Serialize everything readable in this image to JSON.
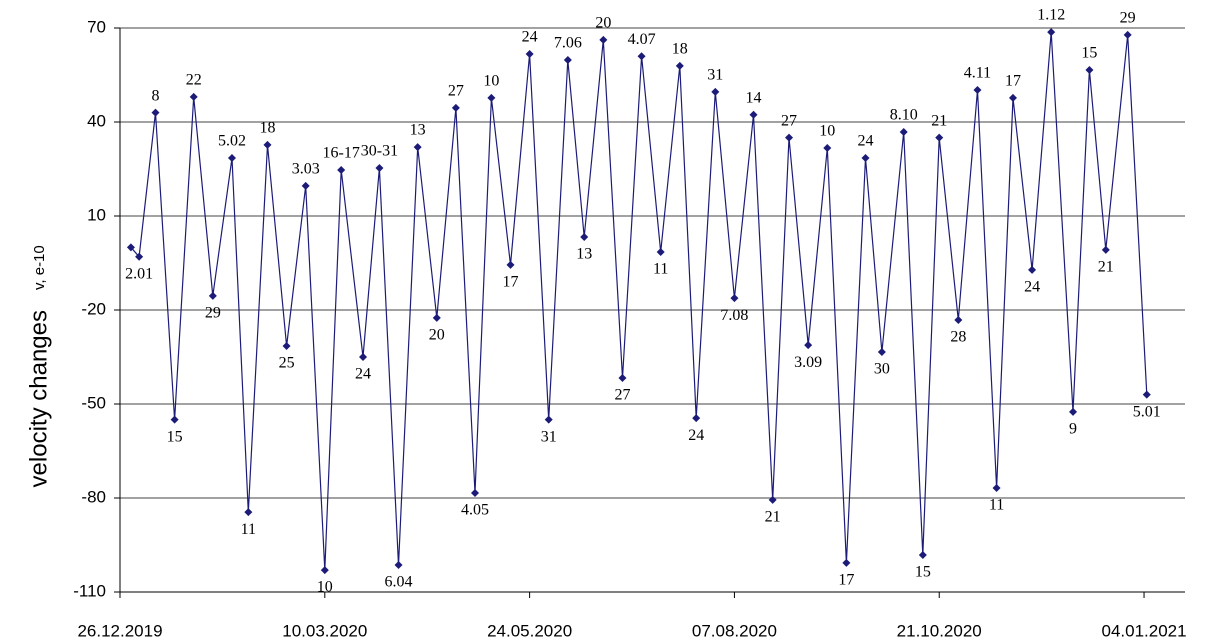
{
  "chart_data": {
    "type": "line",
    "y_label": "velocity changes",
    "y_unit": "v, e-10",
    "x": [
      "30.12.2019",
      "02.01.2020",
      "08.01.2020",
      "15.01.2020",
      "22.01.2020",
      "29.01.2020",
      "05.02.2020",
      "11.02.2020",
      "18.02.2020",
      "25.02.2020",
      "03.03.2020",
      "10.03.2020",
      "16.03.2020",
      "24.03.2020",
      "30.03.2020",
      "06.04.2020",
      "13.04.2020",
      "20.04.2020",
      "27.04.2020",
      "04.05.2020",
      "10.05.2020",
      "17.05.2020",
      "24.05.2020",
      "31.05.2020",
      "07.06.2020",
      "13.06.2020",
      "20.06.2020",
      "27.06.2020",
      "04.07.2020",
      "11.07.2020",
      "18.07.2020",
      "24.07.2020",
      "31.07.2020",
      "07.08.2020",
      "14.08.2020",
      "21.08.2020",
      "27.08.2020",
      "03.09.2020",
      "10.09.2020",
      "17.09.2020",
      "24.09.2020",
      "30.09.2020",
      "08.10.2020",
      "15.10.2020",
      "21.10.2020",
      "28.10.2020",
      "04.11.2020",
      "11.11.2020",
      "17.11.2020",
      "24.11.2020",
      "01.12.2020",
      "09.12.2020",
      "15.12.2020",
      "21.12.2020",
      "29.12.2020",
      "05.01.2021"
    ],
    "series": [
      {
        "name": "velocity changes",
        "color": "#1c1c78",
        "values": [
          0,
          -3,
          43,
          -55,
          48,
          -15.5,
          28.5,
          -84.5,
          32.7,
          -31.5,
          19.6,
          -103,
          24.7,
          -35,
          25.3,
          -101.4,
          32,
          -22.5,
          44.5,
          -78.4,
          47.7,
          -5.6,
          61.7,
          -55,
          59.8,
          3.3,
          66.2,
          -41.7,
          61,
          -1.5,
          57.9,
          -54.5,
          49.6,
          -16.2,
          42.3,
          -80.6,
          35,
          -31.2,
          31.7,
          -100.7,
          28.5,
          -33.4,
          36.8,
          -98.2,
          35,
          -23.2,
          50.2,
          -76.8,
          47.7,
          -7.2,
          68.7,
          -52.5,
          56.6,
          -0.8,
          67.8,
          -47
        ],
        "point_labels": [
          null,
          "2.01",
          "8",
          "15",
          "22",
          "29",
          "5.02",
          "11",
          "18",
          "25",
          "3.03",
          "10",
          "16-17",
          "24",
          "30-31",
          "6.04",
          "13",
          "20",
          "27",
          "4.05",
          "10",
          "17",
          "24",
          "31",
          "7.06",
          "13",
          "20",
          "27",
          "4.07",
          "11",
          "18",
          "24",
          "31",
          "7.08",
          "14",
          "21",
          "27",
          "3.09",
          "10",
          "17",
          "24",
          "30",
          "8.10",
          "15",
          "21",
          "28",
          "4.11",
          "11",
          "17",
          "24",
          "1.12",
          "9",
          "15",
          "21",
          "29",
          "5.01"
        ]
      }
    ],
    "xlim": [
      "26.12.2019",
      "19.01.2021"
    ],
    "xticks": [
      "26.12.2019",
      "10.03.2020",
      "24.05.2020",
      "07.08.2020",
      "21.10.2020",
      "04.01.2021"
    ],
    "ylim": [
      -110,
      70
    ],
    "yticks": [
      -110,
      -80,
      -50,
      -20,
      10,
      40,
      70
    ],
    "grid": true
  }
}
